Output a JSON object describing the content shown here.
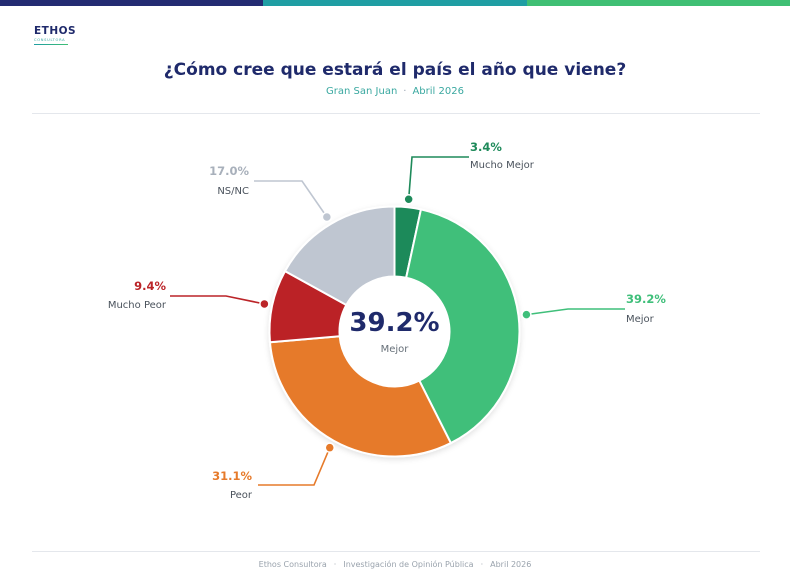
{
  "brand": {
    "logo_text": "ETHOS",
    "logo_subtext": "CONSULTORA",
    "bar_colors": [
      "#232b72",
      "#1f9ea3",
      "#3fbf74"
    ]
  },
  "header": {
    "title": "¿Cómo cree que estará el país el año que viene?",
    "subtitle_location": "Gran San Juan",
    "subtitle_separator": "·",
    "subtitle_date": "Abril 2026"
  },
  "center": {
    "value": "39.2%",
    "label": "Mejor",
    "value_color": "#1f2a6b"
  },
  "chart_data": {
    "type": "pie",
    "donut": true,
    "title": "¿Cómo cree que estará el país el año que viene?",
    "slices": [
      {
        "label": "Mucho Mejor",
        "value": 3.4,
        "display": "3.4%",
        "color": "#1e8a5a",
        "label_color": "#1e8a5a"
      },
      {
        "label": "Mejor",
        "value": 39.2,
        "display": "39.2%",
        "color": "#3fbf7a",
        "label_color": "#3fbf7a"
      },
      {
        "label": "Peor",
        "value": 31.1,
        "display": "31.1%",
        "color": "#e67a2a",
        "label_color": "#e67a2a"
      },
      {
        "label": "Mucho Peor",
        "value": 9.4,
        "display": "9.4%",
        "color": "#bb2428",
        "label_color": "#bb2428"
      },
      {
        "label": "NS/NC",
        "value": 17.0,
        "display": "17.0%",
        "color": "#bfc6d1",
        "label_color": "#a8b0bb"
      }
    ],
    "legend": "none"
  },
  "footer": {
    "org": "Ethos Consultora",
    "separator": "·",
    "project": "Investigación de Opinión Pública",
    "date": "Abril 2026"
  }
}
